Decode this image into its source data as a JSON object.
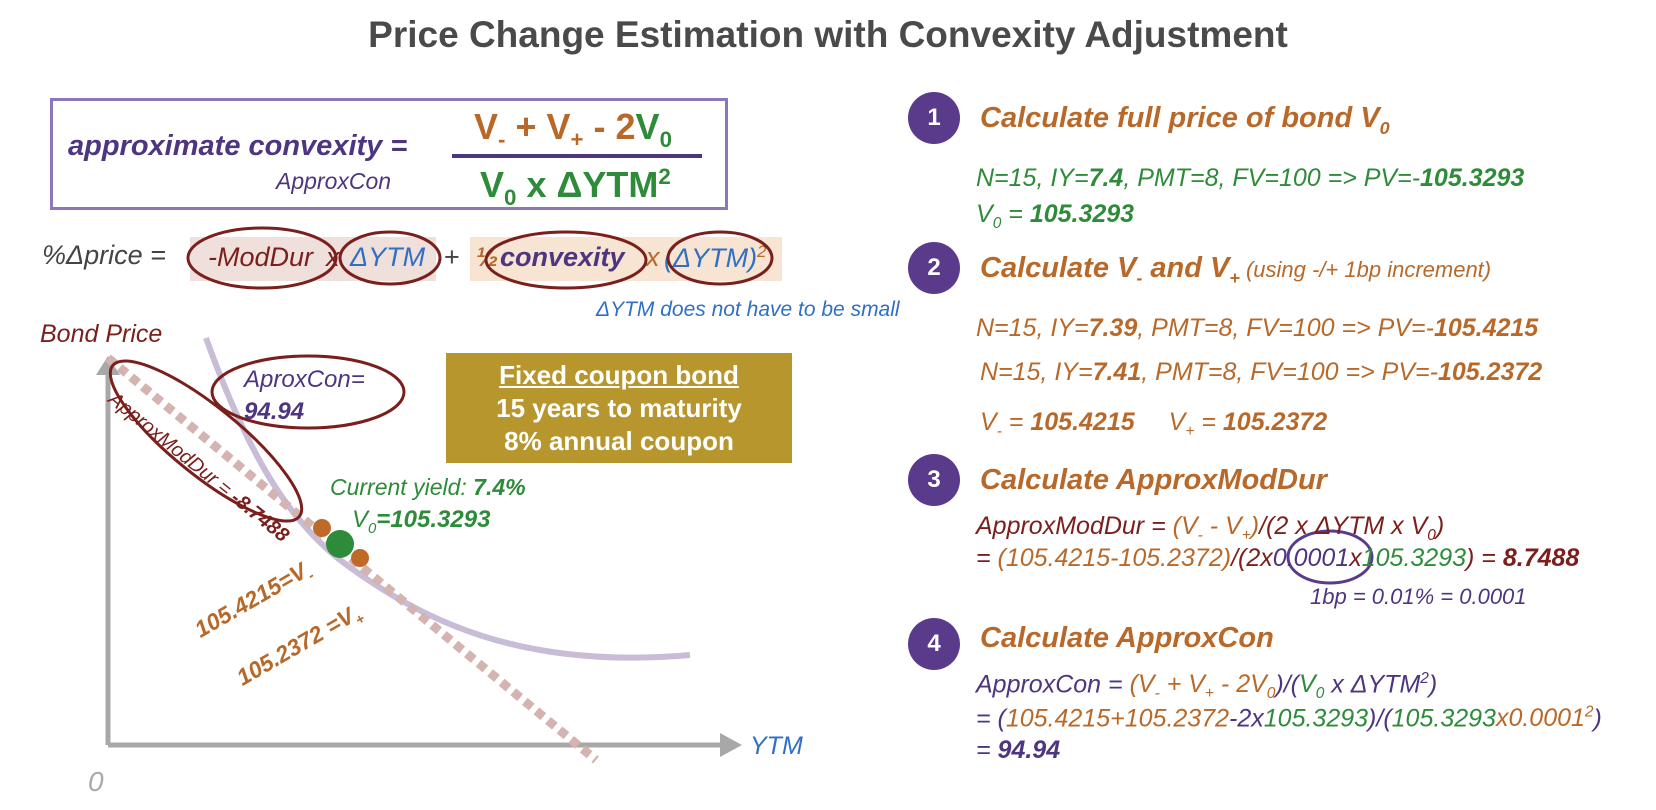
{
  "title": "Price Change Estimation with Convexity Adjustment",
  "colors": {
    "purple": "#4e3580",
    "green": "#2e8b3a",
    "orange": "#b8692a",
    "maroon": "#7a1f1c",
    "blue": "#2f6fc4",
    "gold": "#b8962e",
    "curve": "#c8bcd6"
  },
  "formula": {
    "lhs": "approximate convexity =",
    "lhs_sub": "ApproxCon",
    "num_vminus": "V",
    "num_vminus_sub": "-",
    "num_plus": " + ",
    "num_vplus": "V",
    "num_vplus_sub": "+",
    "num_minus2": " - 2",
    "num_v0": "V",
    "num_v0_sub": "0",
    "den_v0": "V",
    "den_v0_sub": "0",
    "den_rest": " x ΔYTM",
    "den_sup": "2"
  },
  "price_eq": {
    "lhs": "%Δprice =",
    "modDur": "-ModDur",
    "x1": "x",
    "dytm1": "ΔYTM",
    "plus": "+",
    "half": "½",
    "convexity": "convexity",
    "x2": "x",
    "dytm2": "(ΔYTM)",
    "sup": "2",
    "note": "ΔYTM does not have to be small"
  },
  "graph": {
    "y_label": "Bond Price",
    "x_label": "YTM",
    "origin": "0",
    "approxcon_label": "AproxCon=",
    "approxcon_value": "94.94",
    "tangent_label": "ApproxModDur = ",
    "tangent_value": "-8.7488",
    "current_yield_label": "Current yield: ",
    "current_yield_value": "7.4%",
    "v0_label": "V",
    "v0_sub": "0",
    "v0_value": "=105.3293",
    "vminus_label": "105.4215=V",
    "vminus_sub": "-",
    "vplus_label": "105.2372 =V",
    "vplus_sub": "+"
  },
  "info_box": {
    "line1": "Fixed coupon bond",
    "line2": "15 years to maturity",
    "line3": "8% annual coupon"
  },
  "steps": [
    {
      "num": "1",
      "title": "Calculate full price of bond V",
      "title_sub": "0",
      "line1_pre": "N=15, IY=",
      "line1_iy": "7.4",
      "line1_post": ", PMT=8, FV=100  =>    PV=-",
      "line1_pv": "105.3293",
      "line2_pre": "V",
      "line2_sub": "0",
      "line2_eq": " = ",
      "line2_val": "105.3293"
    },
    {
      "num": "2",
      "title_a": "Calculate V",
      "title_a_sub": "-",
      "title_b": " and V",
      "title_b_sub": "+",
      "title_note": " (using -/+ 1bp increment)",
      "line1_pre": "N=15, IY=",
      "line1_iy": "7.39",
      "line1_post": ", PMT=8, FV=100  =>    PV=-",
      "line1_pv": "105.4215",
      "line2_pre": "N=15, IY=",
      "line2_iy": "7.41",
      "line2_post": ", PMT=8, FV=100  =>    PV=-",
      "line2_pv": "105.2372",
      "vm_label": "V",
      "vm_sub": "-",
      "vm_eq": " = ",
      "vm_val": "105.4215",
      "vp_label": "V",
      "vp_sub": "+",
      "vp_eq": " = ",
      "vp_val": "105.2372"
    },
    {
      "num": "3",
      "title": "Calculate ApproxModDur",
      "formula_a": "ApproxModDur = ",
      "formula_b": "(V",
      "formula_b_sub": "-",
      "formula_c": " - V",
      "formula_c_sub": "+",
      "formula_d": ")",
      "formula_e": "/(2 x ΔYTM x V",
      "formula_e_sub": "0",
      "formula_f": ")",
      "calc_a": "= ",
      "calc_b": "(105.4215-105.2372)",
      "calc_c": "/(2x",
      "calc_d": "0.0001",
      "calc_e": "x",
      "calc_f": "105.3293",
      "calc_g": ") = ",
      "calc_result": "8.7488",
      "bp_note": "1bp = 0.01% = 0.0001"
    },
    {
      "num": "4",
      "title": "Calculate ApproxCon",
      "formula_a": "ApproxCon = ",
      "formula_b": "(V",
      "formula_b_sub": "-",
      "formula_c": " + V",
      "formula_c_sub": "+",
      "formula_d": " - 2V",
      "formula_d_sub": "0",
      "formula_e": ")/(",
      "formula_f": "V",
      "formula_f_sub": "0",
      "formula_g": " x ΔYTM",
      "formula_g_sup": "2",
      "formula_h": ")",
      "calc_a": "= (",
      "calc_b": "105.4215+105.2372",
      "calc_c": "-2x",
      "calc_d": "105.3293",
      "calc_e": ")/(",
      "calc_f": "105.3293",
      "calc_g": "x0.0001",
      "calc_g_sup": "2",
      "calc_h": ")",
      "result_eq": "= ",
      "result_val": "94.94"
    }
  ]
}
